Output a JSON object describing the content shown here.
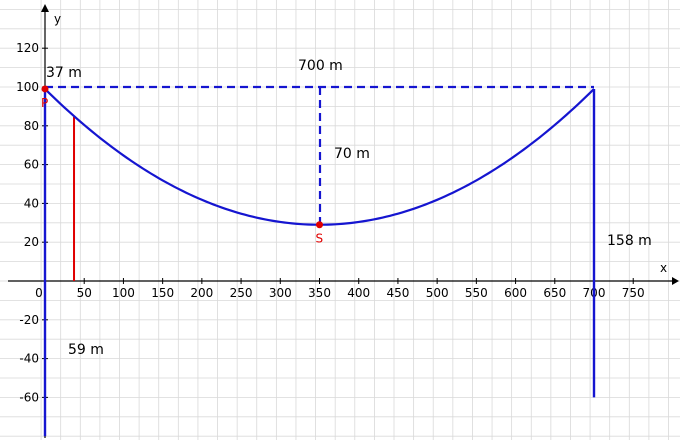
{
  "axes": {
    "x_label": "x",
    "y_label": "y",
    "x_ticks": [
      "0",
      "50",
      "100",
      "150",
      "200",
      "250",
      "300",
      "350",
      "400",
      "450",
      "500",
      "550",
      "600",
      "650",
      "700",
      "750"
    ],
    "y_ticks": [
      "120",
      "100",
      "80",
      "60",
      "40",
      "20",
      "-20",
      "-40",
      "-60"
    ]
  },
  "chart_data": {
    "type": "line",
    "xlim": [
      -5,
      795
    ],
    "ylim": [
      -80,
      130
    ],
    "grid": true,
    "series": [
      {
        "x": [
          0,
          50,
          100,
          150,
          200,
          250,
          300,
          350,
          400,
          450,
          500,
          550,
          600,
          650,
          700
        ],
        "y": [
          99,
          80.6,
          64.7,
          51.6,
          41.1,
          33.6,
          29.0,
          29,
          29.0,
          33.6,
          41.1,
          51.6,
          64.7,
          80.6,
          99
        ],
        "color": "#1515d0"
      }
    ],
    "points": [
      {
        "name": "P",
        "x": 0,
        "y": 99
      },
      {
        "name": "S",
        "x": 350,
        "y": 29
      }
    ],
    "towers": [
      {
        "x": 0,
        "y_top": 99,
        "y_bottom": -80
      },
      {
        "x": 700,
        "y_top": 99,
        "y_bottom": -60
      }
    ],
    "marker_line": {
      "x": 37,
      "y_top": 84.6,
      "y_bottom": 0,
      "color": "#e00000"
    }
  },
  "annotations": {
    "span_label": "700 m",
    "sag_label": "70 m",
    "offset_label": "37 m",
    "right_height_label": "158 m",
    "left_depth_label": "59 m"
  },
  "colors": {
    "curve": "#1515d0",
    "marker": "#e00000",
    "grid": "#d9d9d9"
  }
}
